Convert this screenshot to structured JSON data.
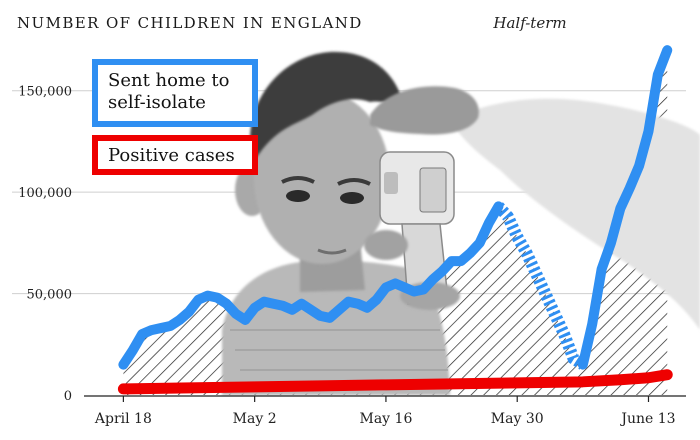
{
  "title": "NUMBER OF CHILDREN IN ENGLAND",
  "annotation": {
    "half_term_label": "Half-term"
  },
  "legend": {
    "sent_home_line1": "Sent home to",
    "sent_home_line2": "self-isolate",
    "positive_cases": "Positive cases"
  },
  "colors": {
    "sent_home": "#2f8ff2",
    "positive_cases": "#ee0000",
    "hatch": "#222222",
    "half_term_band": "#ffffff",
    "photo_tone": "#bdbdbd"
  },
  "chart_data": {
    "type": "line",
    "ylim": [
      0,
      175000
    ],
    "yticks": [
      0,
      50000,
      100000,
      150000
    ],
    "ytick_labels": [
      "0",
      "50,000",
      "100,000",
      "150,000"
    ],
    "xlim_days": [
      -1,
      60
    ],
    "x_axis_start": "April 18",
    "xticks": [
      {
        "label": "April 18",
        "day": 0
      },
      {
        "label": "May 2",
        "day": 14
      },
      {
        "label": "May 16",
        "day": 28
      },
      {
        "label": "May 30",
        "day": 42
      },
      {
        "label": "June 13",
        "day": 56
      }
    ],
    "half_term_days": [
      40,
      49
    ],
    "series": [
      {
        "name": "Sent home to self-isolate",
        "color": "#2f8ff2",
        "points": [
          [
            0,
            15000
          ],
          [
            1,
            22000
          ],
          [
            2,
            30000
          ],
          [
            3,
            32000
          ],
          [
            4,
            33000
          ],
          [
            5,
            34000
          ],
          [
            6,
            37000
          ],
          [
            7,
            41000
          ],
          [
            8,
            47000
          ],
          [
            9,
            49000
          ],
          [
            10,
            48000
          ],
          [
            11,
            45000
          ],
          [
            12,
            40000
          ],
          [
            13,
            37000
          ],
          [
            14,
            43000
          ],
          [
            15,
            46000
          ],
          [
            16,
            45000
          ],
          [
            17,
            44000
          ],
          [
            18,
            42000
          ],
          [
            19,
            45000
          ],
          [
            20,
            42000
          ],
          [
            21,
            39000
          ],
          [
            22,
            38000
          ],
          [
            23,
            42000
          ],
          [
            24,
            46000
          ],
          [
            25,
            45000
          ],
          [
            26,
            43000
          ],
          [
            27,
            47000
          ],
          [
            28,
            53000
          ],
          [
            29,
            55000
          ],
          [
            30,
            53000
          ],
          [
            31,
            51000
          ],
          [
            32,
            52000
          ],
          [
            33,
            57000
          ],
          [
            34,
            61000
          ],
          [
            35,
            66000
          ],
          [
            36,
            66000
          ],
          [
            37,
            70000
          ],
          [
            38,
            75000
          ],
          [
            39,
            85000
          ],
          [
            40,
            93000
          ],
          [
            41,
            88000
          ],
          [
            42,
            78000
          ],
          [
            43,
            70000
          ],
          [
            44,
            60000
          ],
          [
            45,
            50000
          ],
          [
            46,
            40000
          ],
          [
            47,
            30000
          ],
          [
            48,
            18000
          ],
          [
            49,
            15000
          ],
          [
            50,
            35000
          ],
          [
            51,
            62000
          ],
          [
            52,
            75000
          ],
          [
            53,
            92000
          ],
          [
            54,
            102000
          ],
          [
            55,
            113000
          ],
          [
            56,
            130000
          ],
          [
            57,
            158000
          ],
          [
            58,
            170000
          ]
        ]
      },
      {
        "name": "Positive cases",
        "color": "#ee0000",
        "points": [
          [
            0,
            3000
          ],
          [
            7,
            3500
          ],
          [
            14,
            4000
          ],
          [
            21,
            4500
          ],
          [
            28,
            5000
          ],
          [
            35,
            5500
          ],
          [
            42,
            6000
          ],
          [
            49,
            6500
          ],
          [
            53,
            7500
          ],
          [
            56,
            8500
          ],
          [
            58,
            10000
          ]
        ]
      }
    ]
  }
}
